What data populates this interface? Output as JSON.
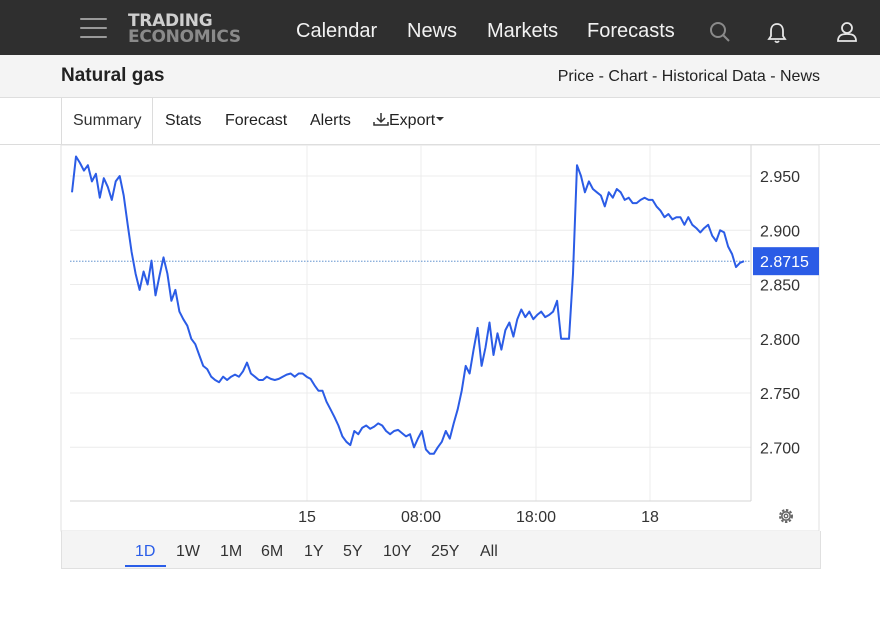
{
  "nav": {
    "logo_line1": "TRADING",
    "logo_line2": "ECONOMICS",
    "links": [
      "Calendar",
      "News",
      "Markets",
      "Forecasts"
    ]
  },
  "header": {
    "title": "Natural gas",
    "subnav": "Price - Chart - Historical Data - News"
  },
  "tabs": [
    "Summary",
    "Stats",
    "Forecast",
    "Alerts",
    "Export"
  ],
  "ranges": [
    "1D",
    "1W",
    "1M",
    "6M",
    "1Y",
    "5Y",
    "10Y",
    "25Y",
    "All"
  ],
  "active_range": "1D",
  "colors": {
    "line": "#2b5ce6",
    "accent": "#2a5de8",
    "nav_bg": "#2f2f2f"
  },
  "chart_data": {
    "type": "line",
    "ylim": [
      2.65,
      2.98
    ],
    "y_ticks": [
      "2.950",
      "2.900",
      "2.850",
      "2.800",
      "2.750",
      "2.700"
    ],
    "x_ticks": [
      "15",
      "08:00",
      "18:00",
      "18"
    ],
    "last_value": "2.8715",
    "grid": true,
    "series": [
      {
        "values": [
          2.935,
          2.968,
          2.962,
          2.955,
          2.96,
          2.945,
          2.952,
          2.93,
          2.948,
          2.94,
          2.928,
          2.945,
          2.95,
          2.932,
          2.905,
          2.88,
          2.86,
          2.845,
          2.862,
          2.85,
          2.872,
          2.84,
          2.858,
          2.875,
          2.86,
          2.835,
          2.845,
          2.825,
          2.818,
          2.812,
          2.8,
          2.795,
          2.785,
          2.775,
          2.772,
          2.765,
          2.762,
          2.76,
          2.765,
          2.762,
          2.765,
          2.767,
          2.765,
          2.77,
          2.778,
          2.768,
          2.765,
          2.762,
          2.762,
          2.765,
          2.763,
          2.762,
          2.763,
          2.765,
          2.767,
          2.768,
          2.765,
          2.768,
          2.768,
          2.765,
          2.763,
          2.757,
          2.752,
          2.752,
          2.742,
          2.735,
          2.728,
          2.72,
          2.71,
          2.705,
          2.702,
          2.715,
          2.712,
          2.718,
          2.72,
          2.717,
          2.719,
          2.722,
          2.72,
          2.715,
          2.712,
          2.715,
          2.716,
          2.713,
          2.71,
          2.712,
          2.7,
          2.708,
          2.715,
          2.698,
          2.694,
          2.694,
          2.7,
          2.705,
          2.715,
          2.708,
          2.722,
          2.735,
          2.752,
          2.775,
          2.768,
          2.79,
          2.81,
          2.775,
          2.792,
          2.815,
          2.785,
          2.805,
          2.79,
          2.808,
          2.815,
          2.802,
          2.818,
          2.827,
          2.82,
          2.825,
          2.818,
          2.822,
          2.825,
          2.82,
          2.822,
          2.825,
          2.835,
          2.8,
          2.8,
          2.8,
          2.86,
          2.96,
          2.95,
          2.935,
          2.945,
          2.938,
          2.935,
          2.932,
          2.922,
          2.935,
          2.93,
          2.938,
          2.935,
          2.928,
          2.93,
          2.925,
          2.925,
          2.928,
          2.93,
          2.928,
          2.928,
          2.922,
          2.918,
          2.912,
          2.915,
          2.91,
          2.912,
          2.912,
          2.905,
          2.912,
          2.905,
          2.902,
          2.898,
          2.902,
          2.905,
          2.895,
          2.89,
          2.9,
          2.898,
          2.885,
          2.878,
          2.866,
          2.87,
          2.8715
        ]
      }
    ]
  }
}
